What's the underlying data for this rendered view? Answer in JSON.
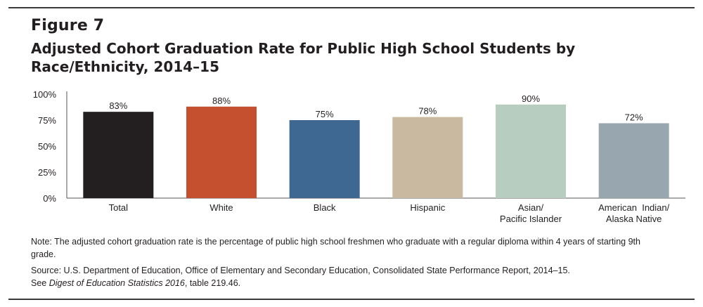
{
  "figure": {
    "label": "Figure 7",
    "title": "Adjusted Cohort Graduation Rate for Public High School Students by Race/Ethnicity, 2014–15"
  },
  "chart_data": {
    "type": "bar",
    "categories": [
      [
        "Total"
      ],
      [
        "White"
      ],
      [
        "Black"
      ],
      [
        "Hispanic"
      ],
      [
        "Asian/",
        "Pacific Islander"
      ],
      [
        "American  Indian/",
        "Alaska Native"
      ]
    ],
    "values": [
      83,
      88,
      75,
      78,
      90,
      72
    ],
    "data_labels": [
      "83%",
      "88%",
      "75%",
      "78%",
      "90%",
      "72%"
    ],
    "colors": [
      "#231f20",
      "#c4502f",
      "#3e6891",
      "#c9b9a0",
      "#b6cdbf",
      "#98a6b0"
    ],
    "yticks": [
      0,
      25,
      50,
      75,
      100
    ],
    "ytick_labels": [
      "0%",
      "25%",
      "50%",
      "75%",
      "100%"
    ],
    "ylim": [
      0,
      100
    ]
  },
  "note": {
    "text": "Note: The adjusted cohort graduation rate is the percentage of public high school freshmen who graduate with a regular diploma within 4 years of starting 9th grade."
  },
  "source": {
    "line1": "Source: U.S. Department of Education, Office of Elementary and Secondary Education, Consolidated State Performance Report, 2014–15.",
    "see_prefix": "See ",
    "see_title": "Digest of Education Statistics 2016",
    "see_suffix": ", table 219.46."
  }
}
